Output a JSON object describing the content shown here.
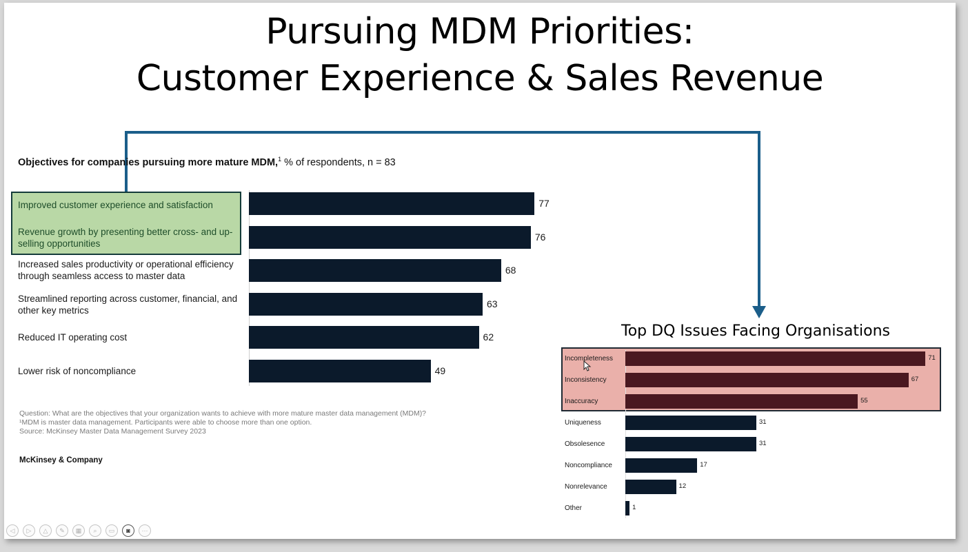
{
  "slide": {
    "title_line1": "Pursuing MDM Priorities:",
    "title_line2": "Customer Experience & Sales Revenue"
  },
  "colors": {
    "bar_dark": "#0b1a2b",
    "bar_red": "#4a1820",
    "highlight_green": "#b9d8a6",
    "highlight_red": "#eab0aa",
    "connector": "#1b5e8a"
  },
  "objectives_chart": {
    "subtitle_bold": "Objectives for companies pursuing more mature MDM,",
    "subtitle_sup": "1",
    "subtitle_rest": " % of respondents, n = 83",
    "footnote_question": "Question: What are the objectives that your organization wants to achieve with more mature master data management (MDM)?",
    "footnote_1": "¹MDM is master data management. Participants were able to choose more than one option.",
    "footnote_source": "Source: McKinsey Master Data Management Survey 2023",
    "brand": "McKinsey & Company"
  },
  "dq_chart": {
    "title": "Top DQ Issues Facing Organisations"
  },
  "chart_data": [
    {
      "type": "bar",
      "orientation": "horizontal",
      "title": "Objectives for companies pursuing more mature MDM,¹ % of respondents, n = 83",
      "categories": [
        "Improved customer experience and satisfaction",
        "Revenue growth by presenting better cross- and up-selling opportunities",
        "Increased sales productivity or operational efficiency through seamless access to master data",
        "Streamlined reporting across customer, financial, and other key metrics",
        "Reduced IT operating cost",
        "Lower risk of noncompliance"
      ],
      "values": [
        77,
        76,
        68,
        63,
        62,
        49
      ],
      "highlighted": [
        true,
        true,
        false,
        false,
        false,
        false
      ],
      "xlim": [
        0,
        100
      ]
    },
    {
      "type": "bar",
      "orientation": "horizontal",
      "title": "Top DQ Issues Facing Organisations",
      "categories": [
        "Incompleteness",
        "Inconsistency",
        "Inaccuracy",
        "Uniqueness",
        "Obsolesence",
        "Noncompliance",
        "Nonrelevance",
        "Other"
      ],
      "values": [
        71,
        67,
        55,
        31,
        31,
        17,
        12,
        1
      ],
      "highlighted": [
        true,
        true,
        true,
        false,
        false,
        false,
        false,
        false
      ],
      "xlim": [
        0,
        100
      ]
    }
  ],
  "toolbar": {
    "buttons": [
      {
        "icon": "previous-icon",
        "glyph": "◁"
      },
      {
        "icon": "next-icon",
        "glyph": "▷"
      },
      {
        "icon": "pointer-icon",
        "glyph": "△"
      },
      {
        "icon": "pen-icon",
        "glyph": "✎"
      },
      {
        "icon": "slides-icon",
        "glyph": "▦"
      },
      {
        "icon": "zoom-icon",
        "glyph": "⌕"
      },
      {
        "icon": "subtitles-icon",
        "glyph": "▭"
      },
      {
        "icon": "camera-icon",
        "glyph": "◙"
      },
      {
        "icon": "more-icon",
        "glyph": "⋯"
      }
    ]
  }
}
